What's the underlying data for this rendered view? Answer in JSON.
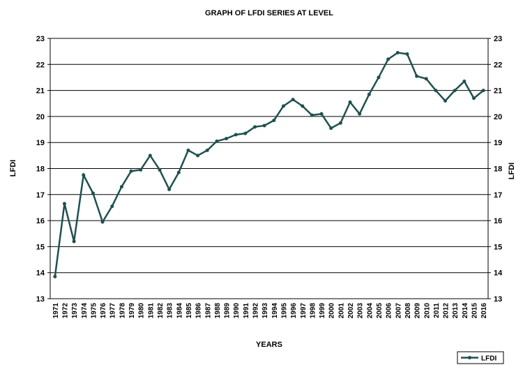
{
  "chart_data": {
    "type": "line",
    "title": "GRAPH OF LFDI SERIES AT LEVEL",
    "x_label": "YEARS",
    "y_label": "LFDI",
    "y2_label": "LFDI",
    "categories": [
      "1971",
      "1972",
      "1973",
      "1974",
      "1975",
      "1976",
      "1977",
      "1978",
      "1979",
      "1980",
      "1981",
      "1982",
      "1983",
      "1984",
      "1985",
      "1986",
      "1987",
      "1988",
      "1989",
      "1990",
      "1991",
      "1992",
      "1993",
      "1994",
      "1995",
      "1996",
      "1997",
      "1998",
      "1999",
      "2000",
      "2001",
      "2002",
      "2003",
      "2004",
      "2005",
      "2006",
      "2007",
      "2008",
      "2009",
      "2010",
      "2011",
      "2012",
      "2013",
      "2014",
      "2015",
      "2016"
    ],
    "series": [
      {
        "name": "LFDI",
        "color": "#1f5050",
        "values": [
          13.85,
          16.65,
          15.2,
          17.75,
          17.05,
          15.95,
          16.55,
          17.3,
          17.9,
          17.95,
          18.5,
          17.95,
          17.2,
          17.85,
          18.7,
          18.5,
          18.7,
          19.05,
          19.15,
          19.3,
          19.35,
          19.6,
          19.65,
          19.85,
          20.4,
          20.65,
          20.4,
          20.05,
          20.1,
          19.55,
          19.75,
          20.55,
          20.1,
          20.85,
          21.5,
          22.2,
          22.45,
          22.4,
          21.55,
          21.45,
          21.0,
          20.6,
          21.0,
          21.35,
          20.7,
          21.0
        ]
      }
    ],
    "ylim": [
      13,
      23
    ],
    "yticks": [
      13,
      14,
      15,
      16,
      17,
      18,
      19,
      20,
      21,
      22,
      23
    ],
    "y2lim": [
      13,
      23
    ],
    "y2ticks": [
      13,
      14,
      15,
      16,
      17,
      18,
      19,
      20,
      21,
      22,
      23
    ],
    "grid": true,
    "legend": "bottom-right"
  }
}
